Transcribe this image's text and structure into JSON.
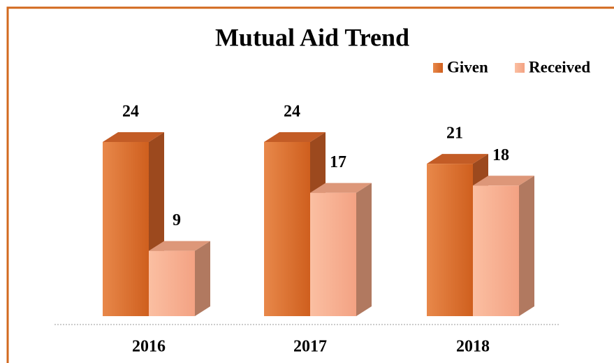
{
  "chart_data": {
    "type": "bar3d",
    "title": "Mutual Aid Trend",
    "categories": [
      "2016",
      "2017",
      "2018"
    ],
    "series": [
      {
        "name": "Given",
        "color": "#d9662a",
        "values": [
          24,
          24,
          21
        ]
      },
      {
        "name": "Received",
        "color": "#f6a886",
        "values": [
          9,
          17,
          18
        ]
      }
    ],
    "legend": "top-right"
  }
}
